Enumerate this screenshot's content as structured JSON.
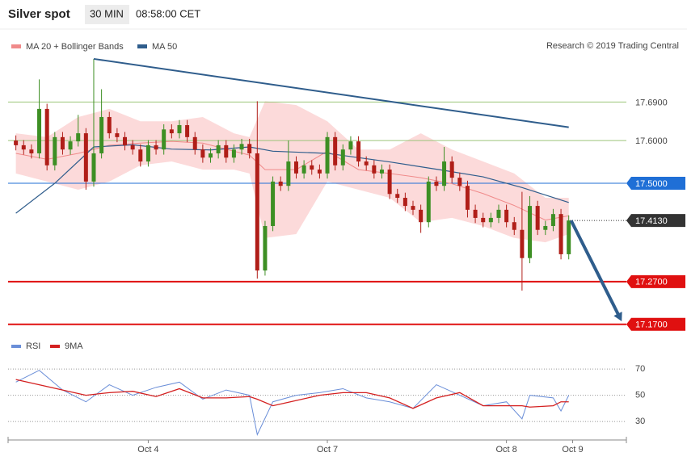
{
  "chart_data": [
    {
      "type": "candlestick",
      "title": "Silver spot",
      "interval": "30 MIN",
      "time": "08:58:00 CET",
      "source": "Research © 2019 Trading Central",
      "xlim": [
        -1,
        78.4
      ],
      "ylim": [
        17.145,
        17.857
      ],
      "open": [
        17.6,
        17.589,
        17.579,
        17.57,
        17.674,
        17.542,
        17.608,
        17.579,
        17.598,
        17.617,
        17.504,
        17.57,
        17.655,
        17.617,
        17.608,
        17.589,
        17.579,
        17.551,
        17.589,
        17.579,
        17.626,
        17.617,
        17.636,
        17.608,
        17.579,
        17.56,
        17.57,
        17.589,
        17.56,
        17.579,
        17.592,
        17.57,
        17.296,
        17.4,
        17.504,
        17.494,
        17.551,
        17.523,
        17.542,
        17.532,
        17.523,
        17.608,
        17.542,
        17.579,
        17.598,
        17.551,
        17.542,
        17.523,
        17.532,
        17.475,
        17.466,
        17.447,
        17.438,
        17.409,
        17.504,
        17.494,
        17.551,
        17.513,
        17.494,
        17.438,
        17.419,
        17.409,
        17.419,
        17.438,
        17.409,
        17.391,
        17.325,
        17.447,
        17.391,
        17.4,
        17.428,
        17.334
      ],
      "high": [
        17.612,
        17.601,
        17.591,
        17.743,
        17.686,
        17.62,
        17.62,
        17.61,
        17.66,
        17.629,
        17.791,
        17.72,
        17.667,
        17.629,
        17.62,
        17.601,
        17.591,
        17.601,
        17.601,
        17.638,
        17.638,
        17.648,
        17.648,
        17.62,
        17.591,
        17.582,
        17.601,
        17.601,
        17.591,
        17.604,
        17.604,
        17.692,
        17.412,
        17.516,
        17.516,
        17.6,
        17.563,
        17.554,
        17.554,
        17.544,
        17.62,
        17.62,
        17.591,
        17.61,
        17.61,
        17.563,
        17.554,
        17.544,
        17.544,
        17.487,
        17.478,
        17.459,
        17.45,
        17.516,
        17.516,
        17.585,
        17.563,
        17.525,
        17.506,
        17.45,
        17.431,
        17.431,
        17.45,
        17.45,
        17.421,
        17.48,
        17.47,
        17.459,
        17.412,
        17.44,
        17.44,
        17.425
      ],
      "low": [
        17.577,
        17.567,
        17.558,
        17.558,
        17.53,
        17.53,
        17.567,
        17.567,
        17.586,
        17.485,
        17.492,
        17.558,
        17.605,
        17.596,
        17.577,
        17.567,
        17.539,
        17.539,
        17.567,
        17.567,
        17.605,
        17.605,
        17.596,
        17.567,
        17.548,
        17.548,
        17.558,
        17.548,
        17.548,
        17.567,
        17.558,
        17.277,
        17.284,
        17.388,
        17.482,
        17.482,
        17.511,
        17.511,
        17.52,
        17.511,
        17.511,
        17.53,
        17.53,
        17.567,
        17.539,
        17.53,
        17.511,
        17.511,
        17.463,
        17.454,
        17.435,
        17.426,
        17.384,
        17.397,
        17.482,
        17.482,
        17.501,
        17.482,
        17.42,
        17.407,
        17.397,
        17.397,
        17.407,
        17.397,
        17.379,
        17.249,
        17.313,
        17.379,
        17.379,
        17.388,
        17.322,
        17.322
      ],
      "close": [
        17.589,
        17.579,
        17.57,
        17.674,
        17.542,
        17.608,
        17.579,
        17.598,
        17.617,
        17.504,
        17.57,
        17.655,
        17.617,
        17.608,
        17.589,
        17.579,
        17.551,
        17.589,
        17.579,
        17.626,
        17.617,
        17.636,
        17.608,
        17.579,
        17.56,
        17.57,
        17.589,
        17.56,
        17.579,
        17.592,
        17.57,
        17.296,
        17.4,
        17.504,
        17.494,
        17.551,
        17.523,
        17.542,
        17.532,
        17.523,
        17.608,
        17.542,
        17.579,
        17.598,
        17.551,
        17.542,
        17.523,
        17.532,
        17.475,
        17.466,
        17.447,
        17.438,
        17.409,
        17.504,
        17.494,
        17.551,
        17.513,
        17.494,
        17.438,
        17.419,
        17.409,
        17.419,
        17.438,
        17.409,
        17.391,
        17.325,
        17.447,
        17.391,
        17.4,
        17.428,
        17.334,
        17.413
      ],
      "up_color": "#3d8f24",
      "down_color": "#b01e18",
      "series": [
        {
          "name": "MA 20 + Bollinger Bands",
          "color": "#f08a8a",
          "band_color": "#fcd3d3",
          "x": [
            0,
            4,
            8,
            12,
            16,
            20,
            24,
            28,
            30,
            32,
            36,
            40,
            44,
            48,
            52,
            56,
            60,
            64,
            68,
            71
          ],
          "values": [
            17.57,
            17.556,
            17.57,
            17.589,
            17.594,
            17.598,
            17.594,
            17.575,
            17.566,
            17.532,
            17.532,
            17.575,
            17.532,
            17.523,
            17.513,
            17.499,
            17.476,
            17.448,
            17.414,
            17.424
          ],
          "upper": [
            17.617,
            17.608,
            17.655,
            17.674,
            17.645,
            17.645,
            17.655,
            17.617,
            17.608,
            17.692,
            17.683,
            17.645,
            17.579,
            17.579,
            17.617,
            17.579,
            17.551,
            17.523,
            17.466,
            17.466
          ],
          "lower": [
            17.523,
            17.504,
            17.485,
            17.504,
            17.542,
            17.551,
            17.532,
            17.532,
            17.523,
            17.372,
            17.381,
            17.504,
            17.485,
            17.466,
            17.409,
            17.419,
            17.4,
            17.372,
            17.362,
            17.381
          ]
        },
        {
          "name": "MA 50",
          "color": "#2f5d8c",
          "x": [
            0,
            5,
            10,
            15,
            20,
            25,
            30,
            33,
            40,
            48,
            55,
            60,
            65,
            71
          ],
          "values": [
            17.43,
            17.5,
            17.585,
            17.59,
            17.58,
            17.578,
            17.585,
            17.575,
            17.57,
            17.55,
            17.53,
            17.515,
            17.49,
            17.455
          ]
        }
      ],
      "trendline": {
        "color": "#2f5d8c",
        "x": [
          10,
          71
        ],
        "y": [
          17.791,
          17.631
        ]
      },
      "arrow": {
        "color": "#2f5d8c",
        "x": [
          71.3,
          77.8
        ],
        "y": [
          17.413,
          17.177
        ]
      },
      "levels": [
        {
          "value": 17.69,
          "label": "17.6900",
          "color": "#9cc47a",
          "tag": false
        },
        {
          "value": 17.6,
          "label": "17.6000",
          "color": "#9cc47a",
          "tag": false
        },
        {
          "value": 17.5,
          "label": "17.5000",
          "color": "#1f6fd6",
          "tag": true
        },
        {
          "value": 17.413,
          "label": "17.4130",
          "color": "#333333",
          "tag": true,
          "dotted": true
        },
        {
          "value": 17.27,
          "label": "17.2700",
          "color": "#e01010",
          "tag": true
        },
        {
          "value": 17.17,
          "label": "17.1700",
          "color": "#e01010",
          "tag": true
        }
      ]
    },
    {
      "type": "line",
      "xlim": [
        -1,
        78.4
      ],
      "ylim": [
        19,
        80.5
      ],
      "yticks": [
        70,
        50,
        30
      ],
      "xticks": [
        {
          "value": 17,
          "label": "Oct 4"
        },
        {
          "value": 40,
          "label": "Oct 7"
        },
        {
          "value": 63,
          "label": "Oct 8"
        },
        {
          "value": 71.5,
          "label": "Oct 9"
        }
      ],
      "series": [
        {
          "name": "RSI",
          "color": "#6a8ed8",
          "x": [
            0,
            3,
            6,
            9,
            12,
            15,
            18,
            21,
            24,
            27,
            30,
            31,
            33,
            36,
            39,
            42,
            45,
            48,
            51,
            54,
            57,
            60,
            63,
            65,
            66,
            69,
            70,
            71
          ],
          "values": [
            60,
            69,
            54,
            45,
            58,
            50,
            56,
            60,
            47,
            54,
            50,
            20,
            45,
            50,
            52,
            55,
            48,
            45,
            40,
            58,
            50,
            42,
            45,
            32,
            50,
            48,
            38,
            50
          ]
        },
        {
          "name": "9MA",
          "color": "#d42020",
          "x": [
            0,
            3,
            6,
            9,
            12,
            15,
            18,
            21,
            24,
            27,
            30,
            31,
            33,
            36,
            39,
            42,
            45,
            48,
            51,
            54,
            57,
            60,
            63,
            65,
            66,
            69,
            70,
            71
          ],
          "values": [
            62,
            58,
            54,
            50,
            52,
            53,
            49,
            55,
            48,
            48,
            49,
            47,
            42,
            46,
            50,
            52,
            52,
            48,
            40,
            48,
            52,
            42,
            42,
            42,
            41,
            42,
            45,
            45
          ]
        }
      ]
    }
  ]
}
